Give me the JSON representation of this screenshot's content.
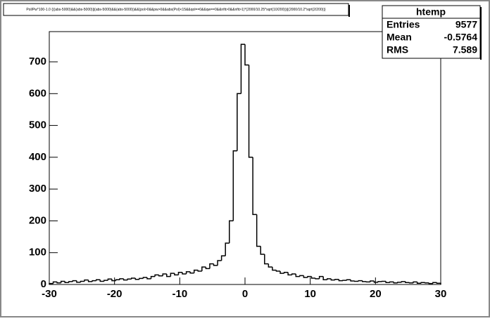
{
  "chart_data": {
    "type": "histogram",
    "title": "Pol/Pw*100-1.0 {((abs-5000)&&(abs-5000)||(abs-5000)&&(abs-5000))&&(pol>0&&pw>0&&abs(Pol)<15&&qol==0&&qw==0&&nfit>0&&nfit>1)*(2000/10.25*sqrt(10/200))||(2000/10.2*sqrt(2/200))}",
    "bins": [
      -30,
      -29.4,
      -28.8,
      -28.2,
      -27.6,
      -27,
      -26.4,
      -25.8,
      -25.2,
      -24.6,
      -24,
      -23.4,
      -22.8,
      -22.2,
      -21.6,
      -21,
      -20.4,
      -19.8,
      -19.2,
      -18.6,
      -18,
      -17.4,
      -16.8,
      -16.2,
      -15.6,
      -15,
      -14.4,
      -13.8,
      -13.2,
      -12.6,
      -12,
      -11.4,
      -10.8,
      -10.2,
      -9.6,
      -9,
      -8.4,
      -7.8,
      -7.2,
      -6.6,
      -6,
      -5.4,
      -4.8,
      -4.2,
      -3.6,
      -3,
      -2.4,
      -1.8,
      -1.2,
      -0.6,
      0,
      0.6,
      1.2,
      1.8,
      2.4,
      3,
      3.6,
      4.2,
      4.8,
      5.4,
      6,
      6.6,
      7.2,
      7.8,
      8.4,
      9,
      9.6,
      10.2,
      10.8,
      11.4,
      12,
      12.6,
      13.2,
      13.8,
      14.4,
      15,
      15.6,
      16.2,
      16.8,
      17.4,
      18,
      18.6,
      19.2,
      19.8,
      20.4,
      21,
      21.6,
      22.2,
      22.8,
      23.4,
      24,
      24.6,
      25.2,
      25.8,
      26.4,
      27,
      27.6,
      28.2,
      28.8,
      29.4,
      30
    ],
    "values": [
      3,
      8,
      5,
      10,
      6,
      9,
      12,
      7,
      10,
      14,
      9,
      12,
      15,
      10,
      13,
      17,
      12,
      15,
      18,
      14,
      17,
      20,
      16,
      19,
      22,
      18,
      25,
      30,
      27,
      33,
      25,
      35,
      30,
      38,
      33,
      40,
      36,
      45,
      42,
      55,
      50,
      65,
      60,
      75,
      90,
      130,
      200,
      420,
      600,
      755,
      690,
      400,
      220,
      120,
      95,
      65,
      55,
      45,
      42,
      35,
      38,
      30,
      33,
      25,
      28,
      22,
      25,
      20,
      18,
      25,
      15,
      18,
      14,
      16,
      12,
      13,
      15,
      11,
      10,
      12,
      9,
      8,
      11,
      7,
      9,
      10,
      6,
      8,
      5,
      7,
      9,
      6,
      5,
      8,
      4,
      6,
      5,
      3,
      6,
      4
    ],
    "color": "#000000",
    "xlim": [
      -30,
      30
    ],
    "xticks": [
      -30,
      -20,
      -10,
      0,
      10,
      20,
      30
    ],
    "ylim": [
      0,
      795
    ],
    "yticks": [
      0,
      100,
      200,
      300,
      400,
      500,
      600,
      700
    ],
    "stats": {
      "name": "htemp",
      "rows": [
        [
          "Entries",
          9577
        ],
        [
          "Mean",
          -0.5764
        ],
        [
          "RMS",
          7.589
        ]
      ]
    }
  }
}
